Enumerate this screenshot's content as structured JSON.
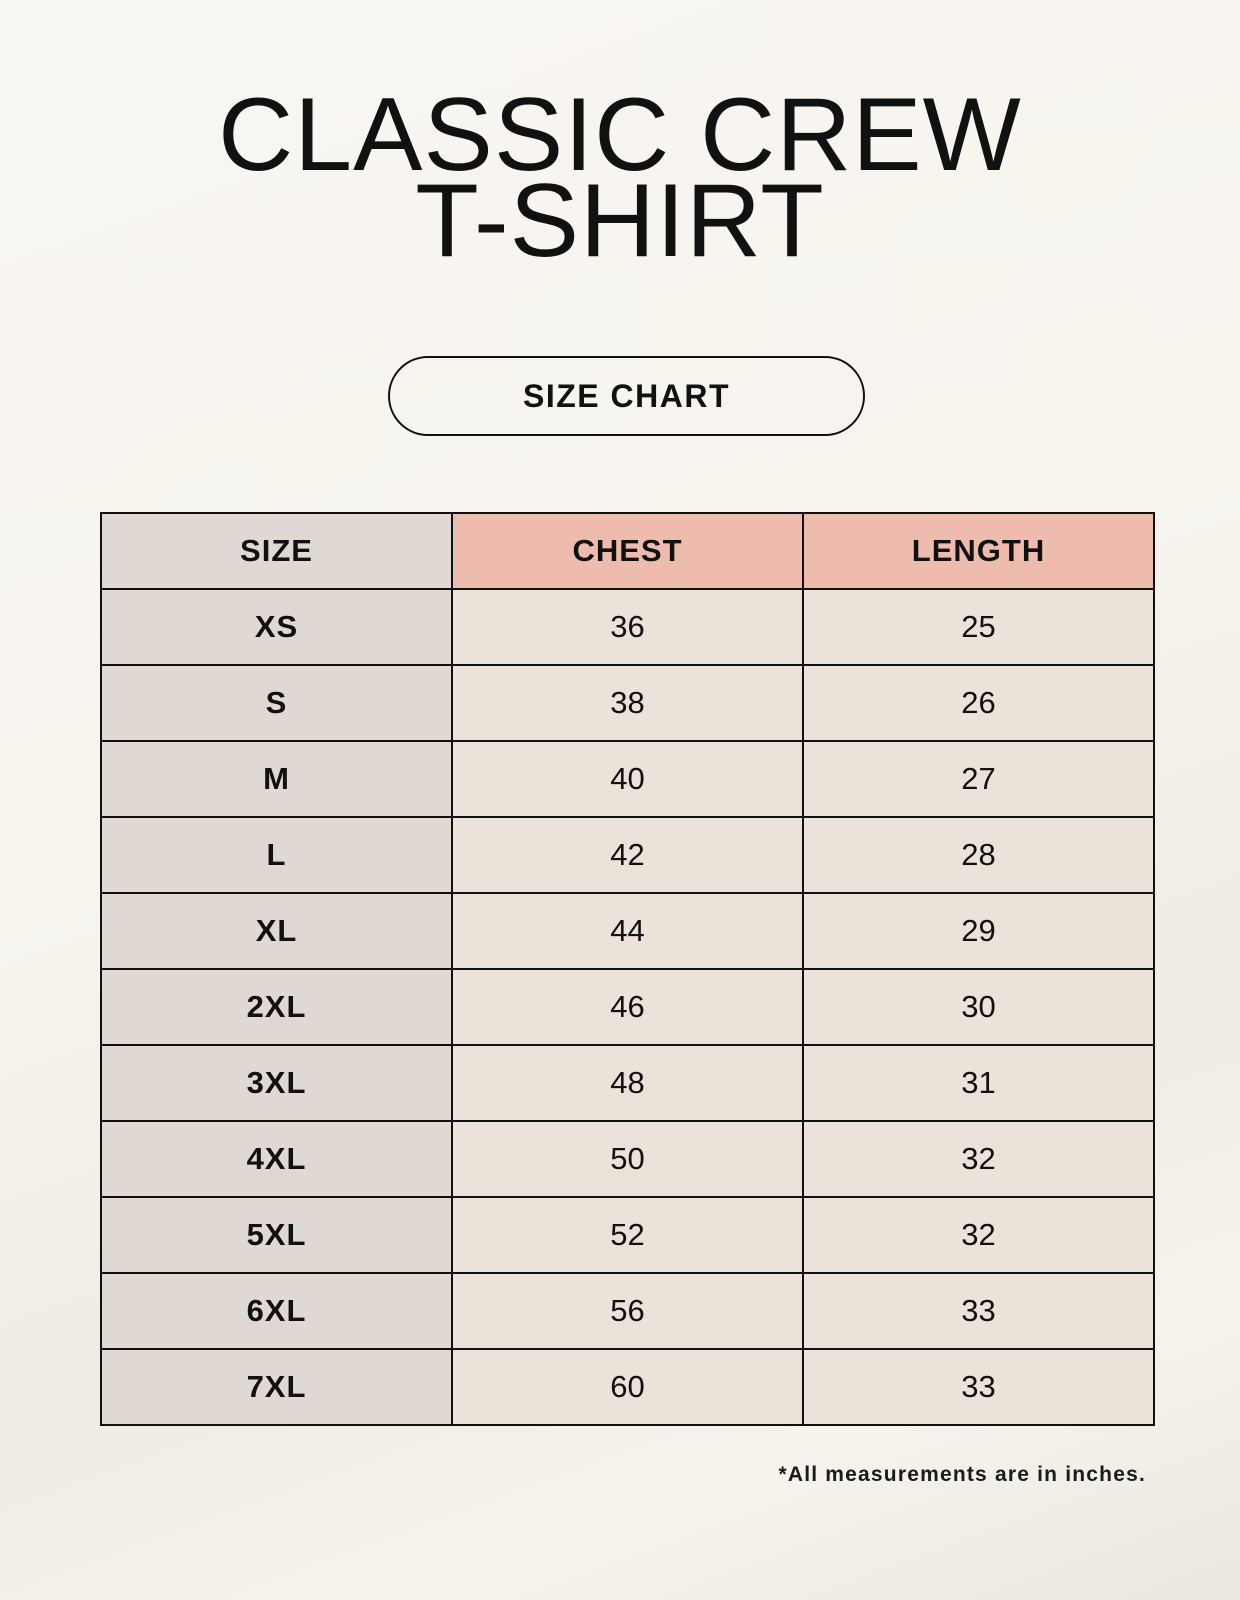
{
  "title": {
    "line1": "CLASSIC CREW",
    "line2": "T-SHIRT"
  },
  "badge": "SIZE CHART",
  "table": {
    "headers": [
      "SIZE",
      "CHEST",
      "LENGTH"
    ],
    "rows": [
      [
        "XS",
        "36",
        "25"
      ],
      [
        "S",
        "38",
        "26"
      ],
      [
        "M",
        "40",
        "27"
      ],
      [
        "L",
        "42",
        "28"
      ],
      [
        "XL",
        "44",
        "29"
      ],
      [
        "2XL",
        "46",
        "30"
      ],
      [
        "3XL",
        "48",
        "31"
      ],
      [
        "4XL",
        "50",
        "32"
      ],
      [
        "5XL",
        "52",
        "32"
      ],
      [
        "6XL",
        "56",
        "33"
      ],
      [
        "7XL",
        "60",
        "33"
      ]
    ]
  },
  "footnote": "*All measurements are in inches.",
  "colors": {
    "header_accent": "#eebcae",
    "size_column": "#e0d9d3",
    "value_cells": "#ebe3d9"
  }
}
